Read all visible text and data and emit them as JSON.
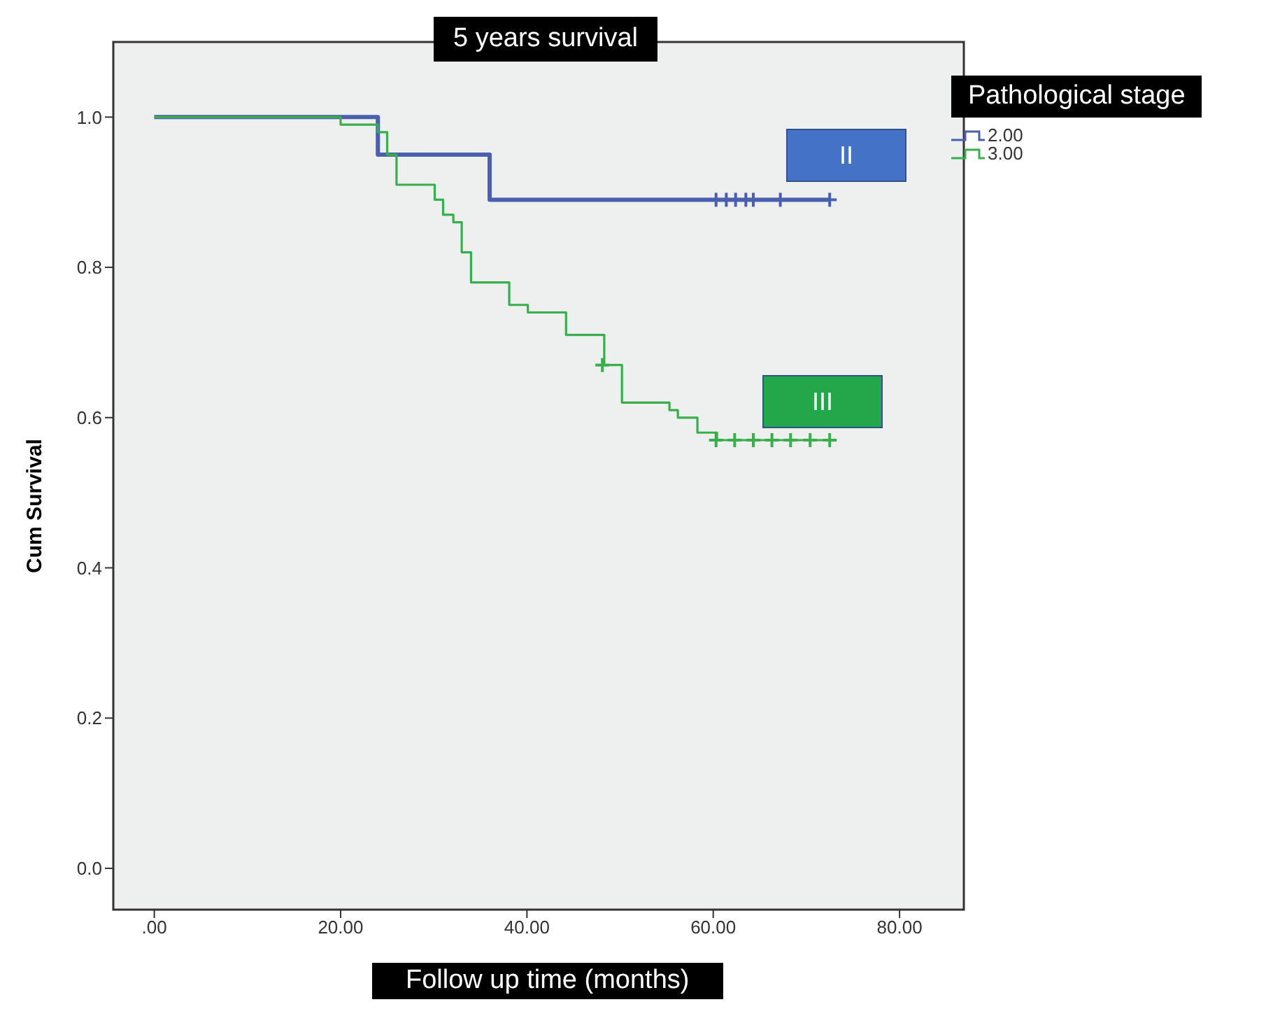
{
  "chart_data": {
    "type": "step",
    "title": "5 years survival",
    "xlabel": "Follow up time (months)",
    "ylabel": "Cum Survival",
    "legend_title": "Pathological stage",
    "legend": "top right",
    "xlim": [
      -4.4,
      86.9
    ],
    "ylim": [
      -0.055,
      1.1
    ],
    "xticks": [
      {
        "value": 0,
        "label": ".00"
      },
      {
        "value": 20,
        "label": "20.00"
      },
      {
        "value": 40,
        "label": "40.00"
      },
      {
        "value": 60,
        "label": "60.00"
      },
      {
        "value": 80,
        "label": "80.00"
      }
    ],
    "yticks": [
      {
        "value": 0,
        "label": "0.0"
      },
      {
        "value": 0.2,
        "label": "0.2"
      },
      {
        "value": 0.4,
        "label": "0.4"
      },
      {
        "value": 0.6,
        "label": "0.6"
      },
      {
        "value": 0.8,
        "label": "0.8"
      },
      {
        "value": 1,
        "label": "1.0"
      }
    ],
    "series": [
      {
        "name": "2.00",
        "color": "#4a5fae",
        "x": [
          0,
          24,
          36,
          72.5
        ],
        "values": [
          1,
          0.95,
          0.89,
          0.89
        ]
      },
      {
        "name": "3.00",
        "color": "#3aae4c",
        "x": [
          0,
          20,
          24,
          25,
          26,
          30.1,
          31,
          32.1,
          33,
          34,
          38.1,
          40.1,
          44.2,
          48.3,
          50.2,
          55.3,
          56.2,
          58.3,
          60.4,
          72.5
        ],
        "values": [
          1,
          0.99,
          0.98,
          0.95,
          0.91,
          0.89,
          0.87,
          0.86,
          0.82,
          0.78,
          0.75,
          0.74,
          0.71,
          0.67,
          0.62,
          0.61,
          0.6,
          0.58,
          0.57,
          0.57
        ]
      },
      {
        "type": "scatter",
        "marker": "cross",
        "color": "#4a5fae",
        "x": [
          60.3,
          61.4,
          62.4,
          63.5,
          64.3,
          67.2,
          72.5
        ],
        "values": [
          0.89,
          0.89,
          0.89,
          0.89,
          0.89,
          0.89,
          0.89
        ]
      },
      {
        "type": "scatter",
        "marker": "cross",
        "color": "#3aae4c",
        "x": [
          48.1,
          60.3,
          62.3,
          64.3,
          66.3,
          68.3,
          70.4,
          72.5
        ],
        "values": [
          0.67,
          0.57,
          0.57,
          0.57,
          0.57,
          0.57,
          0.57,
          0.57
        ]
      }
    ],
    "annotations": [
      "II",
      "III"
    ]
  }
}
